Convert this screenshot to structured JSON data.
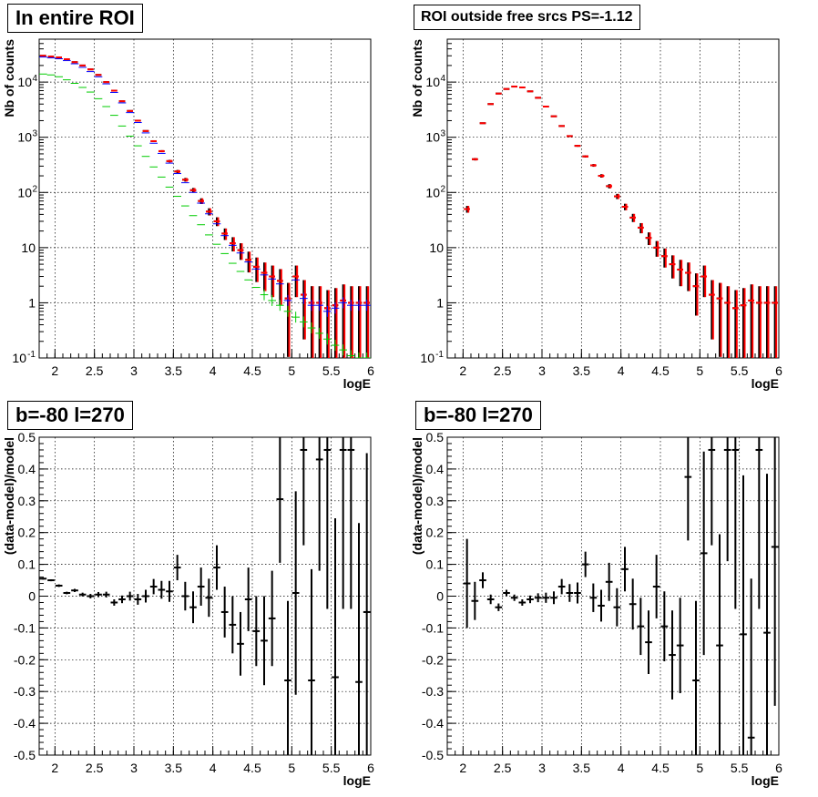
{
  "colors": {
    "data": "#000000",
    "model": "#ff0000",
    "component_blue": "#0000ff",
    "component_green": "#00cc00",
    "grid": "#000000"
  },
  "panels": [
    {
      "title": "In entire ROI"
    },
    {
      "title": "ROI outside free srcs PS=-1.12"
    },
    {
      "title": "b=-80 l=270"
    },
    {
      "title": "b=-80 l=270"
    }
  ],
  "chart_data": [
    {
      "type": "scatter",
      "title": "In entire ROI",
      "xlabel": "logE",
      "ylabel": "Nb of counts",
      "log_y": true,
      "xlim": [
        1.8,
        6.0
      ],
      "ylim": [
        0.1,
        60000
      ],
      "grid": true,
      "x_ticks": [
        "2",
        "2.5",
        "3",
        "3.5",
        "4",
        "4.5",
        "5",
        "5.5",
        "6"
      ],
      "y_ticks": [
        "10^{-1}",
        "1",
        "10",
        "10^{2}",
        "10^{3}",
        "10^{4}"
      ],
      "series": [
        {
          "role": "data",
          "color": "#000000",
          "x": [
            1.85,
            1.95,
            2.05,
            2.15,
            2.25,
            2.35,
            2.45,
            2.55,
            2.65,
            2.75,
            2.85,
            2.95,
            3.05,
            3.15,
            3.25,
            3.35,
            3.45,
            3.55,
            3.65,
            3.75,
            3.85,
            3.95,
            4.05,
            4.15,
            4.25,
            4.35,
            4.45,
            4.55,
            4.65,
            4.75,
            4.85,
            4.95,
            5.05,
            5.15,
            5.25,
            5.35,
            5.45,
            5.55,
            5.65,
            5.75,
            5.85,
            5.95
          ],
          "y": [
            30000,
            29000,
            28000,
            26000,
            23000,
            20000,
            17000,
            13500,
            10000,
            7000,
            4500,
            3000,
            2000,
            1300,
            850,
            560,
            370,
            240,
            170,
            110,
            70,
            45,
            30,
            18,
            12,
            9,
            6,
            4.5,
            3.5,
            3,
            2.5,
            1.2,
            3,
            1.4,
            1,
            1,
            0.8,
            0.9,
            1.1,
            1,
            1,
            1
          ]
        },
        {
          "role": "model",
          "color": "#ff0000",
          "x": [
            1.85,
            1.95,
            2.05,
            2.15,
            2.25,
            2.35,
            2.45,
            2.55,
            2.65,
            2.75,
            2.85,
            2.95,
            3.05,
            3.15,
            3.25,
            3.35,
            3.45,
            3.55,
            3.65,
            3.75,
            3.85,
            3.95,
            4.05,
            4.15,
            4.25,
            4.35,
            4.45,
            4.55,
            4.65,
            4.75,
            4.85,
            4.95,
            5.05,
            5.15,
            5.25,
            5.35,
            5.45,
            5.55,
            5.65,
            5.75,
            5.85,
            5.95
          ],
          "y": [
            30000,
            29000,
            28000,
            26000,
            23000,
            20000,
            17000,
            13500,
            10000,
            7000,
            4500,
            3000,
            2000,
            1300,
            850,
            560,
            370,
            240,
            170,
            110,
            70,
            45,
            30,
            18,
            12,
            9,
            6,
            4.5,
            3.5,
            3,
            2.5,
            1.2,
            3,
            1.4,
            1,
            1,
            0.8,
            0.9,
            1.1,
            1,
            1,
            1
          ]
        },
        {
          "role": "component",
          "color": "#0000ff",
          "x": [
            1.85,
            1.95,
            2.05,
            2.15,
            2.25,
            2.35,
            2.45,
            2.55,
            2.65,
            2.75,
            2.85,
            2.95,
            3.05,
            3.15,
            3.25,
            3.35,
            3.45,
            3.55,
            3.65,
            3.75,
            3.85,
            3.95,
            4.05,
            4.15,
            4.25,
            4.35,
            4.45,
            4.55,
            4.65,
            4.75,
            4.85,
            4.95,
            5.05,
            5.15,
            5.25,
            5.35,
            5.45,
            5.55,
            5.65,
            5.75,
            5.85,
            5.95
          ],
          "y": [
            28500,
            27500,
            26500,
            24500,
            21500,
            18500,
            15500,
            12500,
            9300,
            6500,
            4200,
            2800,
            1850,
            1200,
            780,
            510,
            340,
            220,
            150,
            100,
            64,
            41,
            27,
            16.5,
            11,
            8,
            5.5,
            4.1,
            3.2,
            2.7,
            2.2,
            1.1,
            2.6,
            1.2,
            0.9,
            0.9,
            0.7,
            0.8,
            1,
            0.9,
            0.9,
            0.9
          ]
        },
        {
          "role": "component",
          "color": "#00cc00",
          "x": [
            1.85,
            1.95,
            2.05,
            2.15,
            2.25,
            2.35,
            2.45,
            2.55,
            2.65,
            2.75,
            2.85,
            2.95,
            3.05,
            3.15,
            3.25,
            3.35,
            3.45,
            3.55,
            3.65,
            3.75,
            3.85,
            3.95,
            4.05,
            4.15,
            4.25,
            4.35,
            4.45,
            4.55,
            4.65,
            4.75,
            4.85,
            4.95,
            5.05,
            5.15,
            5.25,
            5.35,
            5.45,
            5.55,
            5.65,
            5.75,
            5.85,
            5.95
          ],
          "y": [
            14000,
            13500,
            12500,
            11000,
            9500,
            8000,
            6600,
            5000,
            3600,
            2500,
            1600,
            1050,
            700,
            450,
            290,
            190,
            125,
            85,
            57,
            38,
            26,
            17,
            11.5,
            7.8,
            5.2,
            3.7,
            2.6,
            1.9,
            1.4,
            1.1,
            0.9,
            0.7,
            0.55,
            0.45,
            0.35,
            0.28,
            0.22,
            0.17,
            0.14,
            0.11,
            0.1,
            0.1
          ]
        }
      ]
    },
    {
      "type": "scatter",
      "title": "ROI outside free srcs PS=-1.12",
      "xlabel": "logE",
      "ylabel": "Nb of counts",
      "log_y": true,
      "xlim": [
        1.8,
        6.0
      ],
      "ylim": [
        0.1,
        60000
      ],
      "grid": true,
      "x_ticks": [
        "2",
        "2.5",
        "3",
        "3.5",
        "4",
        "4.5",
        "5",
        "5.5",
        "6"
      ],
      "y_ticks": [
        "10^{-1}",
        "1",
        "10",
        "10^{2}",
        "10^{3}",
        "10^{4}"
      ],
      "series": [
        {
          "role": "data",
          "color": "#000000",
          "x": [
            2.05,
            2.15,
            2.25,
            2.35,
            2.45,
            2.55,
            2.65,
            2.75,
            2.85,
            2.95,
            3.05,
            3.15,
            3.25,
            3.35,
            3.45,
            3.55,
            3.65,
            3.75,
            3.85,
            3.95,
            4.05,
            4.15,
            4.25,
            4.35,
            4.45,
            4.55,
            4.65,
            4.75,
            4.85,
            4.95,
            5.05,
            5.15,
            5.25,
            5.35,
            5.45,
            5.55,
            5.65,
            5.75,
            5.85,
            5.95
          ],
          "y": [
            50,
            400,
            1800,
            4000,
            6200,
            7500,
            8300,
            8000,
            6800,
            5200,
            3600,
            2400,
            1600,
            1050,
            700,
            450,
            310,
            200,
            130,
            85,
            55,
            35,
            23,
            15,
            10,
            7,
            5,
            4,
            3.5,
            2,
            3,
            1.4,
            1.2,
            1,
            0.8,
            0.9,
            1.1,
            1,
            1,
            1
          ]
        },
        {
          "role": "model",
          "color": "#ff0000",
          "x": [
            2.05,
            2.15,
            2.25,
            2.35,
            2.45,
            2.55,
            2.65,
            2.75,
            2.85,
            2.95,
            3.05,
            3.15,
            3.25,
            3.35,
            3.45,
            3.55,
            3.65,
            3.75,
            3.85,
            3.95,
            4.05,
            4.15,
            4.25,
            4.35,
            4.45,
            4.55,
            4.65,
            4.75,
            4.85,
            4.95,
            5.05,
            5.15,
            5.25,
            5.35,
            5.45,
            5.55,
            5.65,
            5.75,
            5.85,
            5.95
          ],
          "y": [
            50,
            400,
            1800,
            4000,
            6200,
            7500,
            8300,
            8000,
            6800,
            5200,
            3600,
            2400,
            1600,
            1050,
            700,
            450,
            310,
            200,
            130,
            85,
            55,
            35,
            23,
            15,
            10,
            7,
            5,
            4,
            3.5,
            2,
            3,
            1.4,
            1.2,
            1,
            0.8,
            0.9,
            1.1,
            1,
            1,
            1
          ]
        }
      ]
    },
    {
      "type": "scatter",
      "title": "b=-80 l=270",
      "xlabel": "logE",
      "ylabel": "(data-model)/model",
      "xlim": [
        1.8,
        6.0
      ],
      "ylim": [
        -0.5,
        0.5
      ],
      "grid": true,
      "x_ticks": [
        "2",
        "2.5",
        "3",
        "3.5",
        "4",
        "4.5",
        "5",
        "5.5",
        "6"
      ],
      "y_ticks": [
        "-0.5",
        "-0.4",
        "-0.3",
        "-0.2",
        "-0.1",
        "0",
        "0.1",
        "0.2",
        "0.3",
        "0.4",
        "0.5"
      ],
      "series": [
        {
          "role": "residual",
          "color": "#000000",
          "x": [
            1.85,
            1.95,
            2.05,
            2.15,
            2.25,
            2.35,
            2.45,
            2.55,
            2.65,
            2.75,
            2.85,
            2.95,
            3.05,
            3.15,
            3.25,
            3.35,
            3.45,
            3.55,
            3.65,
            3.75,
            3.85,
            3.95,
            4.05,
            4.15,
            4.25,
            4.35,
            4.45,
            4.55,
            4.65,
            4.75,
            4.85,
            4.95,
            5.05,
            5.15,
            5.25,
            5.35,
            5.45,
            5.55,
            5.65,
            5.75,
            5.85,
            5.95
          ],
          "y": [
            0.055,
            0.05,
            0.033,
            0.01,
            0.018,
            0.005,
            0,
            0.005,
            0.005,
            -0.02,
            -0.01,
            0,
            -0.01,
            0,
            0.03,
            0.02,
            0.015,
            0.09,
            0,
            -0.035,
            0.03,
            -0.005,
            0.09,
            -0.05,
            -0.09,
            -0.15,
            -0.01,
            -0.11,
            -0.14,
            -0.07,
            0.305,
            -0.265,
            0.01,
            0.46,
            -0.265,
            0.43,
            0.46,
            -0.255,
            0.46,
            0.46,
            -0.27,
            -0.05
          ],
          "err": [
            0.003,
            0.003,
            0.004,
            0.004,
            0.005,
            0.006,
            0.007,
            0.008,
            0.009,
            0.01,
            0.012,
            0.014,
            0.017,
            0.02,
            0.024,
            0.028,
            0.033,
            0.04,
            0.045,
            0.05,
            0.06,
            0.06,
            0.07,
            0.08,
            0.09,
            0.1,
            0.1,
            0.11,
            0.14,
            0.15,
            0.2,
            0.25,
            0.32,
            0.3,
            0.35,
            0.35,
            0.5,
            0.5,
            0.5,
            0.5,
            0.5,
            0.5
          ]
        }
      ]
    },
    {
      "type": "scatter",
      "title": "b=-80 l=270",
      "xlabel": "logE",
      "ylabel": "(data-model)/model",
      "xlim": [
        1.8,
        6.0
      ],
      "ylim": [
        -0.5,
        0.5
      ],
      "grid": true,
      "x_ticks": [
        "2",
        "2.5",
        "3",
        "3.5",
        "4",
        "4.5",
        "5",
        "5.5",
        "6"
      ],
      "y_ticks": [
        "-0.5",
        "-0.4",
        "-0.3",
        "-0.2",
        "-0.1",
        "0",
        "0.1",
        "0.2",
        "0.3",
        "0.4",
        "0.5"
      ],
      "series": [
        {
          "role": "residual",
          "color": "#000000",
          "x": [
            2.05,
            2.15,
            2.25,
            2.35,
            2.45,
            2.55,
            2.65,
            2.75,
            2.85,
            2.95,
            3.05,
            3.15,
            3.25,
            3.35,
            3.45,
            3.55,
            3.65,
            3.75,
            3.85,
            3.95,
            4.05,
            4.15,
            4.25,
            4.35,
            4.45,
            4.55,
            4.65,
            4.75,
            4.85,
            4.95,
            5.05,
            5.15,
            5.25,
            5.35,
            5.45,
            5.55,
            5.65,
            5.75,
            5.85,
            5.95
          ],
          "y": [
            0.04,
            -0.015,
            0.05,
            -0.01,
            -0.035,
            0.01,
            -0.005,
            -0.02,
            -0.01,
            -0.005,
            -0.005,
            -0.005,
            0.03,
            0.01,
            0.01,
            0.1,
            -0.005,
            -0.03,
            0.045,
            -0.035,
            0.085,
            -0.025,
            -0.095,
            -0.145,
            0.03,
            -0.095,
            -0.185,
            -0.155,
            0.375,
            -0.265,
            0.135,
            0.46,
            -0.155,
            0.46,
            0.46,
            -0.12,
            -0.445,
            0.46,
            -0.115,
            0.155
          ],
          "err": [
            0.14,
            0.06,
            0.025,
            0.015,
            0.012,
            0.01,
            0.01,
            0.01,
            0.012,
            0.014,
            0.016,
            0.02,
            0.024,
            0.028,
            0.033,
            0.04,
            0.045,
            0.05,
            0.06,
            0.06,
            0.07,
            0.08,
            0.09,
            0.1,
            0.1,
            0.11,
            0.14,
            0.15,
            0.2,
            0.25,
            0.32,
            0.3,
            0.35,
            0.35,
            0.5,
            0.5,
            0.5,
            0.5,
            0.5,
            0.5
          ]
        }
      ]
    }
  ]
}
